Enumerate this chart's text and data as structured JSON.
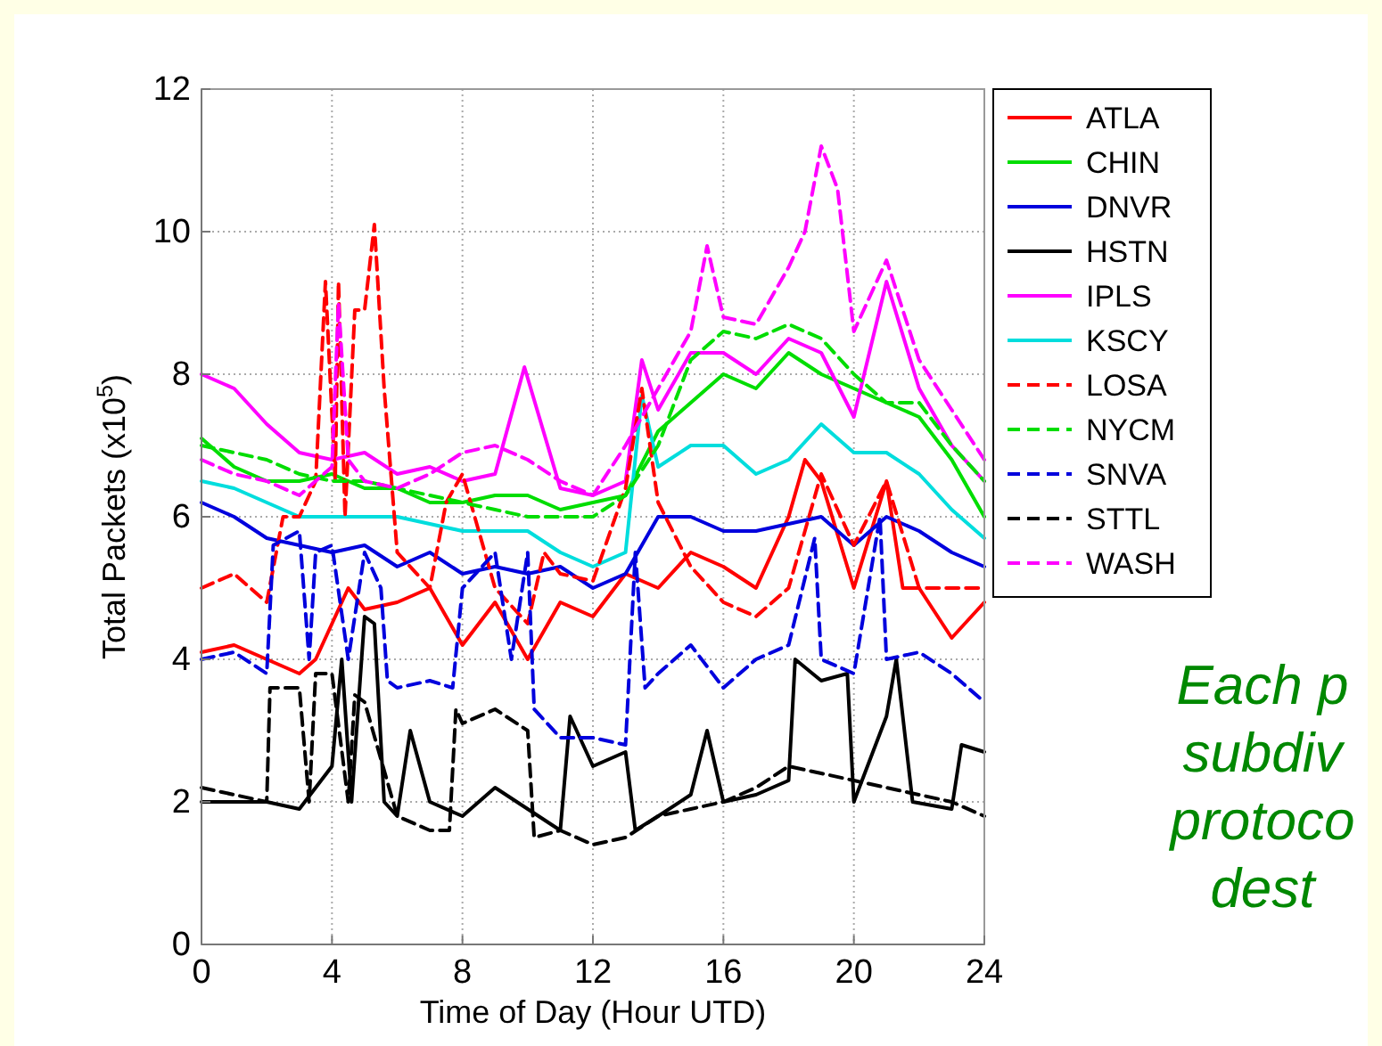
{
  "chart_data": {
    "type": "line",
    "xlabel": "Time of Day (Hour UTD)",
    "ylabel": "Total Packets (x10$^{5}$)",
    "xlim": [
      0,
      24
    ],
    "xticks": [
      0,
      4,
      8,
      12,
      16,
      20,
      24
    ],
    "ylim": [
      0,
      12
    ],
    "yticks": [
      0,
      2,
      4,
      6,
      8,
      10,
      12
    ],
    "grid": true,
    "legend": "top right",
    "marker": "none",
    "annotations": [
      "Each p\nsubdiv\nprotoco\ndest"
    ],
    "series": [
      {
        "name": "ATLA",
        "color": "#ff0000",
        "line_style": "solid",
        "x": [
          0,
          1,
          2,
          3,
          3.5,
          4,
          4.5,
          5,
          6,
          7,
          8,
          9,
          10,
          11,
          12,
          13,
          14,
          15,
          16,
          17,
          18,
          18.5,
          19,
          20,
          21,
          21.5,
          22,
          23,
          24
        ],
        "values": [
          4.1,
          4.2,
          4.0,
          3.8,
          4.0,
          4.5,
          5.0,
          4.7,
          4.8,
          5.0,
          4.2,
          4.8,
          4.0,
          4.8,
          4.6,
          5.2,
          5.0,
          5.5,
          5.3,
          5.0,
          6.0,
          6.8,
          6.5,
          5.0,
          6.5,
          5.0,
          5.0,
          4.3,
          4.8
        ]
      },
      {
        "name": "CHIN",
        "color": "#00dd00",
        "line_style": "solid",
        "x": [
          0,
          1,
          2,
          3,
          4,
          5,
          6,
          7,
          8,
          9,
          10,
          11,
          12,
          13,
          14,
          15,
          16,
          17,
          18,
          19,
          20,
          21,
          22,
          23,
          24
        ],
        "values": [
          7.1,
          6.7,
          6.5,
          6.5,
          6.6,
          6.4,
          6.4,
          6.2,
          6.2,
          6.3,
          6.3,
          6.1,
          6.2,
          6.3,
          7.2,
          7.6,
          8.0,
          7.8,
          8.3,
          8.0,
          7.8,
          7.6,
          7.4,
          6.8,
          6.0
        ]
      },
      {
        "name": "DNVR",
        "color": "#0000dd",
        "line_style": "solid",
        "x": [
          0,
          1,
          2,
          3,
          4,
          5,
          6,
          7,
          8,
          9,
          10,
          11,
          12,
          13,
          14,
          15,
          16,
          17,
          18,
          19,
          20,
          21,
          22,
          23,
          24
        ],
        "values": [
          6.2,
          6.0,
          5.7,
          5.6,
          5.5,
          5.6,
          5.3,
          5.5,
          5.2,
          5.3,
          5.2,
          5.3,
          5.0,
          5.2,
          6.0,
          6.0,
          5.8,
          5.8,
          5.9,
          6.0,
          5.6,
          6.0,
          5.8,
          5.5,
          5.3
        ]
      },
      {
        "name": "HSTN",
        "color": "#000000",
        "line_style": "solid",
        "x": [
          0,
          1,
          2,
          3,
          3.5,
          4,
          4.3,
          4.6,
          5,
          5.3,
          5.6,
          6,
          6.4,
          7,
          8,
          9,
          10,
          11,
          11.3,
          12,
          13,
          13.3,
          14,
          15,
          15.5,
          16,
          17,
          18,
          18.2,
          19,
          19.8,
          20,
          21,
          21.3,
          21.8,
          23,
          23.3,
          24
        ],
        "values": [
          2.0,
          2.0,
          2.0,
          1.9,
          2.2,
          2.5,
          4.0,
          2.0,
          4.6,
          4.5,
          2.0,
          1.8,
          3.0,
          2.0,
          1.8,
          2.2,
          1.9,
          1.6,
          3.2,
          2.5,
          2.7,
          1.6,
          1.8,
          2.1,
          3.0,
          2.0,
          2.1,
          2.3,
          4.0,
          3.7,
          3.8,
          2.0,
          3.2,
          4.0,
          2.0,
          1.9,
          2.8,
          2.7
        ]
      },
      {
        "name": "IPLS",
        "color": "#ff00ff",
        "line_style": "solid",
        "x": [
          0,
          1,
          2,
          3,
          4,
          5,
          6,
          7,
          8,
          9,
          9.9,
          11,
          12,
          13,
          13.5,
          14,
          15,
          16,
          17,
          18,
          19,
          20,
          21,
          22,
          23,
          24
        ],
        "values": [
          8.0,
          7.8,
          7.3,
          6.9,
          6.8,
          6.9,
          6.6,
          6.7,
          6.5,
          6.6,
          8.1,
          6.4,
          6.3,
          6.5,
          8.2,
          7.5,
          8.3,
          8.3,
          8.0,
          8.5,
          8.3,
          7.4,
          9.3,
          7.8,
          7.0,
          6.5
        ]
      },
      {
        "name": "KSCY",
        "color": "#00dddd",
        "line_style": "solid",
        "x": [
          0,
          1,
          2,
          3,
          4,
          5,
          6,
          7,
          8,
          9,
          10,
          11,
          12,
          13,
          13.5,
          14,
          15,
          16,
          17,
          18,
          19,
          20,
          21,
          22,
          23,
          24
        ],
        "values": [
          6.5,
          6.4,
          6.2,
          6.0,
          6.0,
          6.0,
          6.0,
          5.9,
          5.8,
          5.8,
          5.8,
          5.5,
          5.3,
          5.5,
          7.7,
          6.7,
          7.0,
          7.0,
          6.6,
          6.8,
          7.3,
          6.9,
          6.9,
          6.6,
          6.1,
          5.7
        ]
      },
      {
        "name": "LOSA",
        "color": "#ff0000",
        "line_style": "dashed",
        "x": [
          0,
          1,
          2,
          2.5,
          3,
          3.5,
          3.8,
          4.1,
          4.2,
          4.4,
          4.7,
          5,
          5.3,
          5.6,
          6,
          7,
          7.5,
          8,
          9,
          10,
          10.5,
          11,
          12,
          13,
          13.5,
          14,
          15,
          16,
          17,
          18,
          19,
          20,
          21,
          22,
          23,
          24
        ],
        "values": [
          5.0,
          5.2,
          4.8,
          6.0,
          6.0,
          6.5,
          9.3,
          6.5,
          9.3,
          6.0,
          8.9,
          8.9,
          10.1,
          7.8,
          5.5,
          5.0,
          6.2,
          6.6,
          5.0,
          4.5,
          5.5,
          5.2,
          5.1,
          6.4,
          7.8,
          6.2,
          5.3,
          4.8,
          4.6,
          5.0,
          6.6,
          5.6,
          6.5,
          5.0,
          5.0,
          5.0
        ]
      },
      {
        "name": "NYCM",
        "color": "#00dd00",
        "line_style": "dashed",
        "x": [
          0,
          1,
          2,
          3,
          4,
          5,
          6,
          7,
          8,
          9,
          10,
          11,
          12,
          13,
          14,
          15,
          16,
          17,
          18,
          19,
          20,
          21,
          22,
          23,
          24
        ],
        "values": [
          7.0,
          6.9,
          6.8,
          6.6,
          6.5,
          6.5,
          6.4,
          6.3,
          6.2,
          6.1,
          6.0,
          6.0,
          6.0,
          6.3,
          7.0,
          8.2,
          8.6,
          8.5,
          8.7,
          8.5,
          8.0,
          7.6,
          7.6,
          7.0,
          6.5
        ]
      },
      {
        "name": "SNVA",
        "color": "#0000dd",
        "line_style": "dashed",
        "x": [
          0,
          1,
          2,
          2.2,
          3,
          3.3,
          3.5,
          4,
          4.5,
          5,
          5.5,
          5.7,
          6,
          7,
          7.7,
          8,
          9,
          9.5,
          10,
          10.2,
          11,
          12,
          13,
          13.3,
          13.6,
          14,
          15,
          16,
          17,
          18,
          18.8,
          19,
          20,
          20.8,
          21,
          22,
          23,
          24
        ],
        "values": [
          4.0,
          4.1,
          3.8,
          5.6,
          5.8,
          4.0,
          5.5,
          5.6,
          4.0,
          5.5,
          5.0,
          3.7,
          3.6,
          3.7,
          3.6,
          5.0,
          5.5,
          4.0,
          5.5,
          3.3,
          2.9,
          2.9,
          2.8,
          5.5,
          3.6,
          3.8,
          4.2,
          3.6,
          4.0,
          4.2,
          5.7,
          4.0,
          3.8,
          6.0,
          4.0,
          4.1,
          3.8,
          3.4
        ]
      },
      {
        "name": "STTL",
        "color": "#000000",
        "line_style": "dashed",
        "x": [
          0,
          1,
          2,
          2.1,
          3,
          3.3,
          3.5,
          4,
          4.5,
          4.7,
          5,
          6,
          7,
          7.6,
          7.8,
          8,
          9,
          10,
          10.2,
          11,
          12,
          13,
          14,
          15,
          16,
          17,
          18,
          19,
          20,
          21,
          22,
          23,
          24
        ],
        "values": [
          2.2,
          2.1,
          2.0,
          3.6,
          3.6,
          2.0,
          3.8,
          3.8,
          2.0,
          3.5,
          3.4,
          1.8,
          1.6,
          1.6,
          3.3,
          3.1,
          3.3,
          3.0,
          1.5,
          1.6,
          1.4,
          1.5,
          1.8,
          1.9,
          2.0,
          2.2,
          2.5,
          2.4,
          2.3,
          2.2,
          2.1,
          2.0,
          1.8
        ]
      },
      {
        "name": "WASH",
        "color": "#ff00ff",
        "line_style": "dashed",
        "x": [
          0,
          1,
          2,
          3,
          4,
          4.2,
          4.5,
          5,
          6,
          7,
          8,
          9,
          10,
          11,
          12,
          13,
          14,
          15,
          15.5,
          16,
          17,
          18,
          18.5,
          19,
          19.5,
          20,
          21,
          22,
          23,
          24
        ],
        "values": [
          6.8,
          6.6,
          6.5,
          6.3,
          6.7,
          9.0,
          6.8,
          6.5,
          6.4,
          6.6,
          6.9,
          7.0,
          6.8,
          6.5,
          6.3,
          7.0,
          7.8,
          8.6,
          9.8,
          8.8,
          8.7,
          9.5,
          10.0,
          11.2,
          10.6,
          8.6,
          9.6,
          8.2,
          7.5,
          6.8
        ]
      }
    ]
  }
}
